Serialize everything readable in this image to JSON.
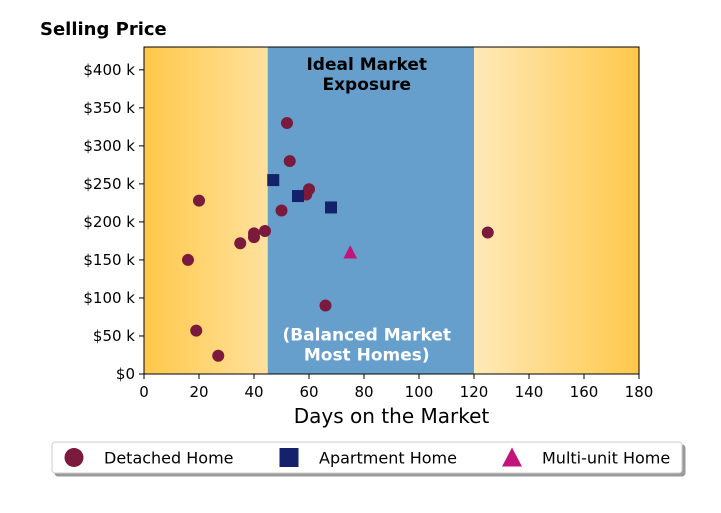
{
  "chart_data": {
    "type": "scatter",
    "title": "",
    "ylabel": "Selling Price",
    "xlabel": "Days on the Market",
    "xlim": [
      0,
      180
    ],
    "ylim": [
      0,
      430000
    ],
    "x_ticks": [
      0,
      20,
      40,
      60,
      80,
      100,
      120,
      140,
      160,
      180
    ],
    "x_tick_labels": [
      "0",
      "20",
      "40",
      "60",
      "80",
      "100",
      "120",
      "140",
      "160",
      "180"
    ],
    "y_ticks": [
      0,
      50000,
      100000,
      150000,
      200000,
      250000,
      300000,
      350000,
      400000
    ],
    "y_tick_labels": [
      "$0",
      "$50 k",
      "$100 k",
      "$150 k",
      "$200 k",
      "$250 k",
      "$300 k",
      "$350 k",
      "$400 k"
    ],
    "grid": false,
    "background": {
      "gradient_colors": [
        "#ffc84a",
        "#fffaf0"
      ],
      "highlight_band": {
        "x_range": [
          45,
          120
        ],
        "color": "#669fcc"
      }
    },
    "annotations": [
      {
        "lines": [
          "Ideal Market",
          "Exposure"
        ],
        "x": 81,
        "y": 400000,
        "color": "#000000"
      },
      {
        "lines": [
          "(Balanced Market",
          "Most Homes)"
        ],
        "x": 81,
        "y": 44000,
        "color": "#ffffff"
      }
    ],
    "legend_position": "bottom",
    "series": [
      {
        "name": "Detached Home",
        "marker": "circle",
        "color": "#7b1a3c",
        "points": [
          [
            16,
            150000
          ],
          [
            19,
            57000
          ],
          [
            20,
            228000
          ],
          [
            27,
            24000
          ],
          [
            35,
            172000
          ],
          [
            40,
            185000
          ],
          [
            40,
            180000
          ],
          [
            44,
            188000
          ],
          [
            50,
            215000
          ],
          [
            52,
            330000
          ],
          [
            53,
            280000
          ],
          [
            59,
            236000
          ],
          [
            60,
            243000
          ],
          [
            66,
            90000
          ],
          [
            125,
            186000
          ]
        ]
      },
      {
        "name": "Apartment Home",
        "marker": "square",
        "color": "#14226b",
        "points": [
          [
            47,
            255000
          ],
          [
            56,
            234000
          ],
          [
            68,
            219000
          ]
        ]
      },
      {
        "name": "Multi-unit Home",
        "marker": "triangle",
        "color": "#c2157c",
        "points": [
          [
            75,
            160000
          ]
        ]
      }
    ]
  }
}
